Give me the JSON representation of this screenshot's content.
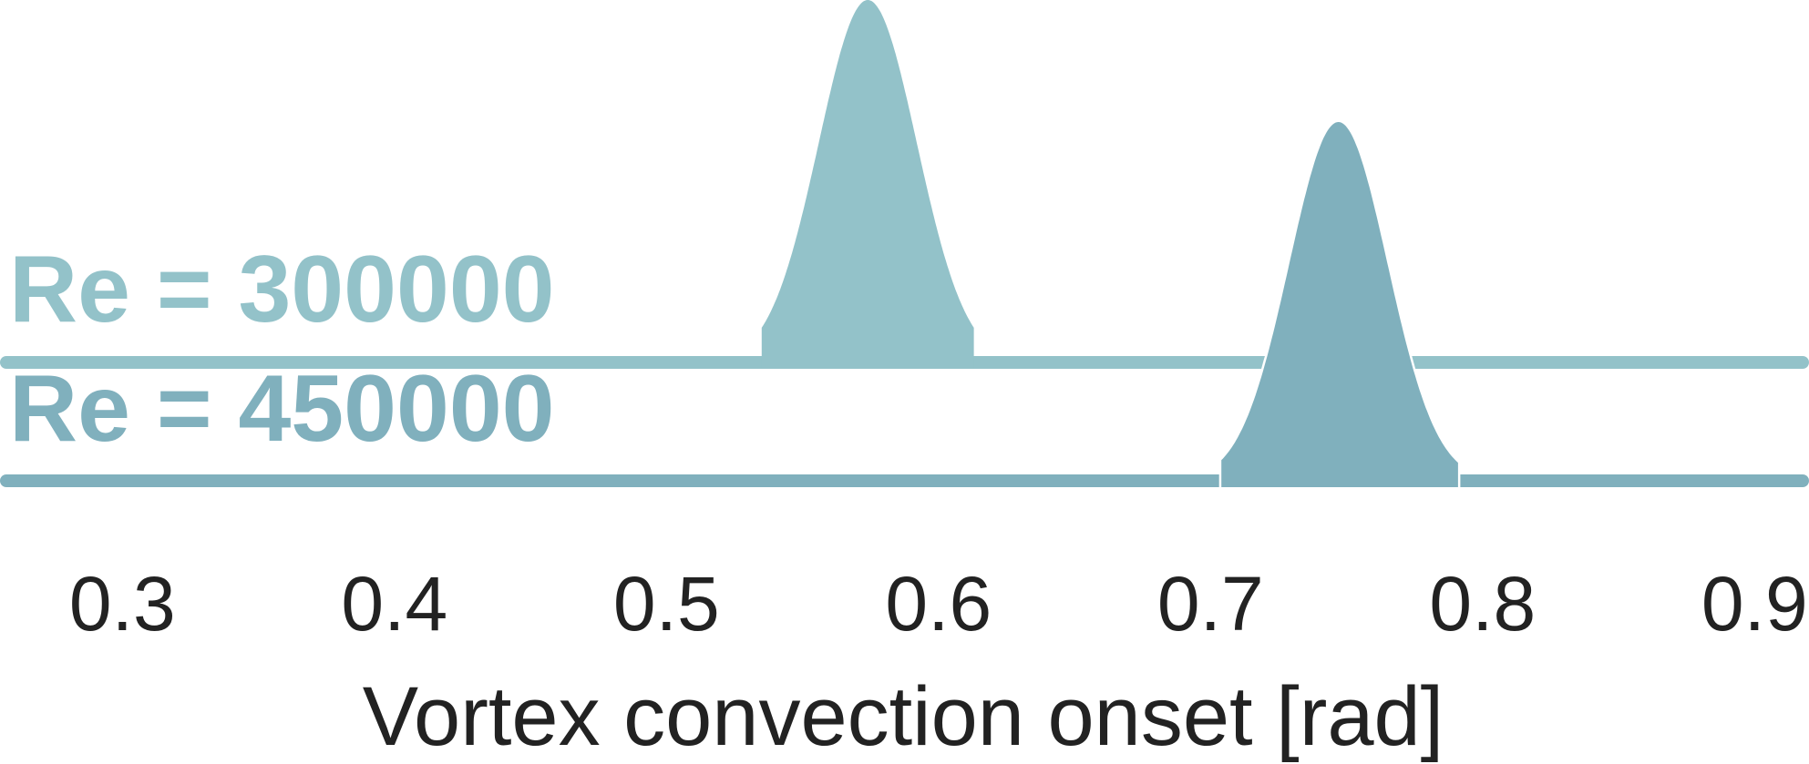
{
  "chart_data": {
    "type": "ridgeline",
    "title": "",
    "xlabel": "Vortex convection onset [rad]",
    "ylabel": "",
    "xlim": [
      0.255,
      0.92
    ],
    "xticks": [
      0.3,
      0.4,
      0.5,
      0.6,
      0.7,
      0.8,
      0.9
    ],
    "xtick_labels": [
      "0.3",
      "0.4",
      "0.5",
      "0.6",
      "0.7",
      "0.8",
      "0.9"
    ],
    "grid": false,
    "legend": "none",
    "series": [
      {
        "name": "Re = 300000",
        "color": "#93c2c9",
        "distribution": {
          "mean": 0.574,
          "std": 0.018,
          "support": [
            0.535,
            0.613
          ]
        },
        "relative_peak_height": 1.0
      },
      {
        "name": "Re = 450000",
        "color": "#80b0bd",
        "distribution": {
          "mean": 0.747,
          "std": 0.018,
          "support": [
            0.704,
            0.791
          ]
        },
        "relative_peak_height": 0.99
      }
    ]
  }
}
